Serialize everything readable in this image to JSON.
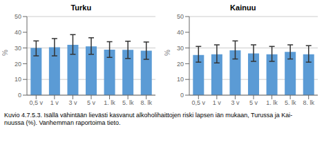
{
  "chart_data": [
    {
      "type": "bar",
      "title": "Turku",
      "categories": [
        "0,5 v",
        "1 v",
        "3 v",
        "5 v",
        "1. lk",
        "5. lk",
        "8. lk"
      ],
      "values": [
        30.0,
        30.5,
        32.0,
        31.0,
        29.0,
        28.8,
        28.3
      ],
      "error_upper": [
        4.5,
        5.5,
        6.5,
        5.5,
        5.0,
        5.5,
        5.5
      ],
      "error_lower": [
        5.0,
        5.5,
        6.0,
        5.0,
        5.0,
        5.5,
        5.5
      ],
      "color": "#5B9BD5",
      "ylabel": "%",
      "ylim": [
        0,
        50
      ],
      "yticks": [
        0,
        10,
        20,
        30,
        40,
        50
      ],
      "grid": true
    },
    {
      "type": "bar",
      "title": "Kainuu",
      "categories": [
        "0,5 v",
        "1 v",
        "3 v",
        "5 v",
        "1. lk",
        "5. lk",
        "8. lk"
      ],
      "values": [
        25.5,
        26.0,
        28.5,
        26.5,
        26.0,
        27.5,
        26.0
      ],
      "error_upper": [
        5.5,
        6.0,
        6.0,
        5.5,
        5.0,
        4.5,
        5.5
      ],
      "error_lower": [
        4.5,
        5.5,
        5.5,
        5.0,
        4.5,
        4.5,
        5.0
      ],
      "color": "#5B9BD5",
      "ylabel": "%",
      "ylim": [
        0,
        50
      ],
      "yticks": [
        0,
        10,
        20,
        30,
        40,
        50
      ],
      "grid": true
    }
  ],
  "caption": "Kuvio 4.7.5.3. Isällä vähintään lievästi kasvanut alkoholihaittojen riski lapsen iän mukaan, Turussa ja Kai-\nnuussa (%). Vanhemman raportoima tieto."
}
